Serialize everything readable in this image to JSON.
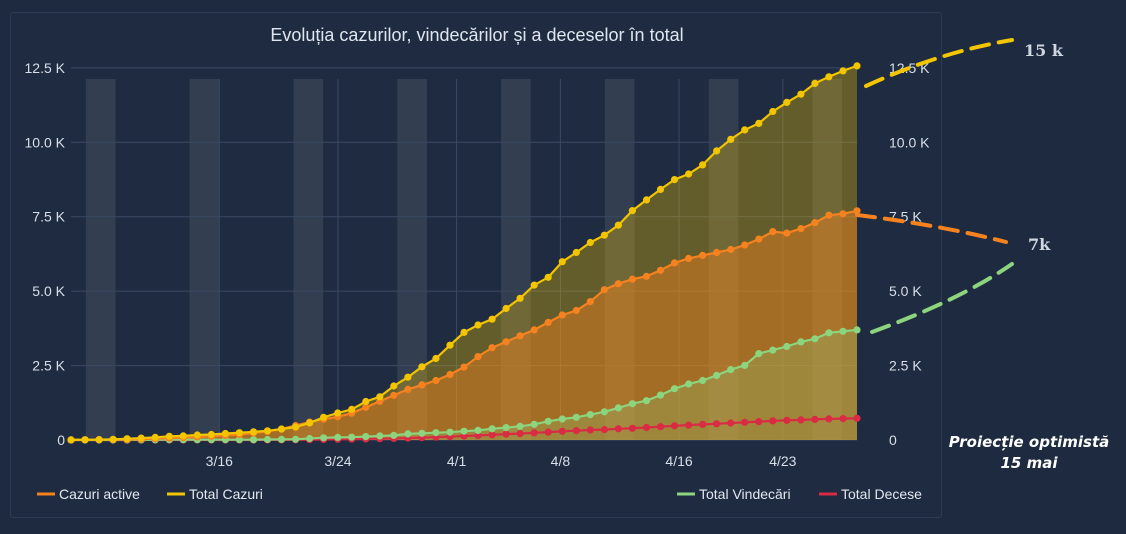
{
  "chart_data": {
    "type": "area",
    "title": "Evoluția cazurilor, vindecărilor și a deceselor în total",
    "x_start": "3/6",
    "x_end": "4/28",
    "x_ticks": [
      "3/16",
      "3/24",
      "4/1",
      "4/8",
      "4/16",
      "4/23"
    ],
    "y_ticks": [
      "0",
      "2.5 K",
      "5.0 K",
      "7.5 K",
      "10.0 K",
      "12.5 K"
    ],
    "ylim": [
      0,
      13000
    ],
    "grid": true,
    "legend_left": [
      "Cazuri active",
      "Total Cazuri"
    ],
    "legend_right": [
      "Total Vindecări",
      "Total Decese"
    ],
    "series": [
      {
        "name": "Cazuri active",
        "color": "#f5821f",
        "values": [
          3,
          7,
          9,
          13,
          15,
          25,
          45,
          59,
          80,
          104,
          125,
          156,
          180,
          235,
          289,
          370,
          485,
          600,
          700,
          780,
          900,
          1100,
          1300,
          1500,
          1700,
          1850,
          2000,
          2200,
          2450,
          2800,
          3100,
          3300,
          3500,
          3700,
          3950,
          4200,
          4350,
          4650,
          5050,
          5250,
          5400,
          5500,
          5700,
          5950,
          6100,
          6200,
          6300,
          6400,
          6550,
          6750,
          7000,
          6950,
          7100,
          7300,
          7550,
          7600,
          7700
        ]
      },
      {
        "name": "Total Cazuri",
        "color": "#f2c500",
        "values": [
          4,
          9,
          15,
          25,
          45,
          64,
          89,
          123,
          139,
          168,
          184,
          217,
          246,
          277,
          308,
          367,
          433,
          576,
          762,
          906,
          1029,
          1292,
          1452,
          1815,
          2109,
          2460,
          2738,
          3183,
          3613,
          3864,
          4057,
          4417,
          4761,
          5202,
          5467,
          5990,
          6300,
          6633,
          6879,
          7216,
          7707,
          8067,
          8418,
          8746,
          8936,
          9242,
          9710,
          10096,
          10417,
          10635,
          11036,
          11339,
          11616,
          11978,
          12200,
          12400,
          12567
        ]
      },
      {
        "name": "Total Vindecări",
        "color": "#8cd47e",
        "values": [
          0,
          0,
          0,
          1,
          3,
          3,
          6,
          9,
          9,
          9,
          9,
          9,
          9,
          9,
          16,
          19,
          25,
          52,
          73,
          86,
          94,
          115,
          136,
          153,
          206,
          225,
          245,
          263,
          294,
          324,
          377,
          416,
          460,
          528,
          629,
          706,
          763,
          854,
          946,
          1077,
          1220,
          1321,
          1508,
          1724,
          1880,
          2000,
          2170,
          2364,
          2506,
          2903,
          3020,
          3140,
          3296,
          3400,
          3600,
          3652,
          3700
        ]
      },
      {
        "name": "Total Decese",
        "color": "#d92b43",
        "values": [
          0,
          0,
          0,
          0,
          0,
          0,
          0,
          0,
          0,
          0,
          0,
          0,
          0,
          0,
          2,
          4,
          6,
          11,
          17,
          23,
          26,
          37,
          44,
          52,
          65,
          79,
          94,
          111,
          133,
          151,
          176,
          197,
          215,
          242,
          267,
          291,
          314,
          335,
          351,
          375,
          392,
          420,
          448,
          478,
          500,
          524,
          545,
          572,
          596,
          619,
          643,
          663,
          675,
          693,
          708,
          718,
          728
        ]
      }
    ],
    "projection": {
      "label_line1": "Proiecție optimistă",
      "label_line2": "15 mai",
      "total_label": "15 k",
      "active_label": "7k",
      "total_target": 15000,
      "active_target": 7000,
      "healed_target": 7000
    }
  }
}
